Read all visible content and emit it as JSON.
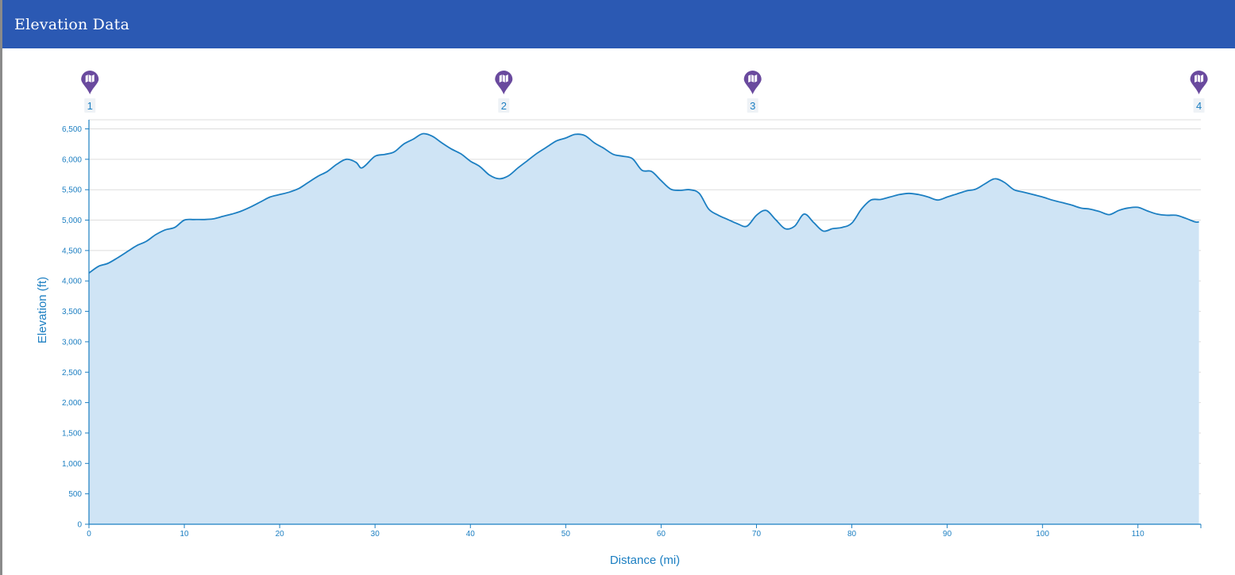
{
  "header": {
    "title": "Elevation Data"
  },
  "colors": {
    "header_bg": "#2b59b3",
    "accent": "#1c7fc2",
    "area_fill": "#cfe4f5",
    "marker": "#6a4a9e",
    "grid": "#dddddd"
  },
  "icons": {
    "marker": "map-pin-icon"
  },
  "chart_data": {
    "type": "area",
    "title": "",
    "xlabel": "Distance (mi)",
    "ylabel": "Elevation (ft)",
    "xlim": [
      0,
      116.6
    ],
    "ylim": [
      0,
      6650
    ],
    "x_ticks": [
      0,
      10,
      20,
      30,
      40,
      50,
      60,
      70,
      80,
      90,
      100,
      110
    ],
    "y_ticks": [
      0,
      500,
      1000,
      1500,
      2000,
      2500,
      3000,
      3500,
      4000,
      4500,
      5000,
      5500,
      6000,
      6500
    ],
    "y_tick_labels": [
      "0",
      "500",
      "1,000",
      "1,500",
      "2,000",
      "2,500",
      "3,000",
      "3,500",
      "4,000",
      "4,500",
      "5,000",
      "5,500",
      "6,000",
      "6,500"
    ],
    "grid": "horizontal",
    "markers": [
      {
        "label": "1",
        "x": 0.1
      },
      {
        "label": "2",
        "x": 43.5
      },
      {
        "label": "3",
        "x": 69.6
      },
      {
        "label": "4",
        "x": 116.4
      }
    ],
    "series": [
      {
        "x": [
          0,
          1,
          2,
          3,
          4,
          5,
          6,
          7,
          8,
          9,
          10,
          11,
          12,
          13,
          14,
          15,
          16,
          17,
          18,
          19,
          20,
          21,
          22,
          23,
          24,
          25,
          26,
          27,
          28,
          28.5,
          29,
          30,
          31,
          32,
          33,
          34,
          35,
          36,
          37,
          38,
          39,
          40,
          41,
          42,
          43,
          44,
          45,
          46,
          47,
          48,
          49,
          50,
          51,
          52,
          53,
          54,
          55,
          56,
          57,
          58,
          59,
          60,
          61,
          62,
          63,
          64,
          65,
          66,
          67,
          68,
          69,
          70,
          71,
          72,
          73,
          74,
          75,
          76,
          77,
          78,
          79,
          80,
          81,
          82,
          83,
          84,
          85,
          86,
          87,
          88,
          89,
          90,
          91,
          92,
          93,
          94,
          95,
          96,
          97,
          98,
          99,
          100,
          101,
          102,
          103,
          104,
          105,
          106,
          107,
          108,
          109,
          110,
          111,
          112,
          113,
          114,
          115,
          116,
          116.4
        ],
        "y": [
          4130,
          4240,
          4290,
          4380,
          4480,
          4580,
          4650,
          4760,
          4840,
          4880,
          5000,
          5010,
          5010,
          5020,
          5060,
          5100,
          5150,
          5220,
          5300,
          5380,
          5420,
          5460,
          5520,
          5620,
          5720,
          5800,
          5920,
          6000,
          5950,
          5860,
          5900,
          6050,
          6080,
          6120,
          6250,
          6330,
          6420,
          6380,
          6270,
          6170,
          6090,
          5970,
          5880,
          5740,
          5680,
          5730,
          5860,
          5980,
          6100,
          6200,
          6300,
          6350,
          6410,
          6390,
          6270,
          6180,
          6080,
          6050,
          6010,
          5820,
          5800,
          5650,
          5510,
          5490,
          5500,
          5440,
          5180,
          5080,
          5010,
          4940,
          4900,
          5080,
          5160,
          5010,
          4860,
          4900,
          5100,
          4960,
          4820,
          4860,
          4880,
          4950,
          5180,
          5330,
          5340,
          5380,
          5420,
          5440,
          5420,
          5380,
          5330,
          5380,
          5430,
          5480,
          5510,
          5600,
          5680,
          5620,
          5500,
          5460,
          5420,
          5380,
          5330,
          5290,
          5250,
          5200,
          5180,
          5140,
          5090,
          5160,
          5200,
          5210,
          5150,
          5100,
          5080,
          5080,
          5030,
          4970,
          4970
        ]
      }
    ]
  }
}
